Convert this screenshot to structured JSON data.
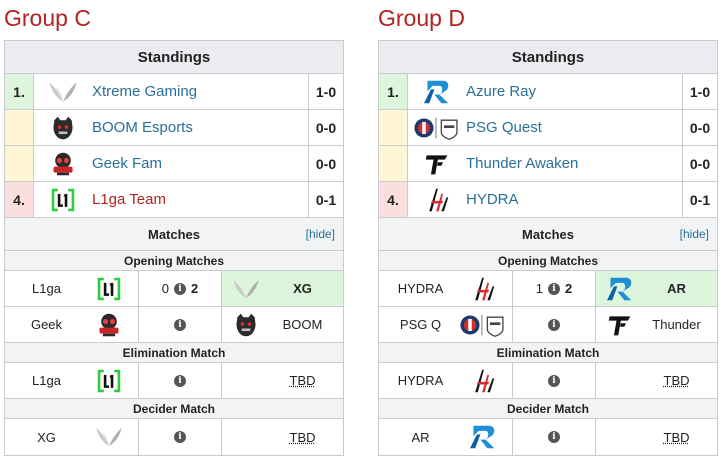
{
  "groups": [
    {
      "title": "Group C",
      "standings_label": "Standings",
      "standings": [
        {
          "place": "1.",
          "team": "Xtreme Gaming",
          "score": "1-0",
          "logo": "xg-wings-icon"
        },
        {
          "place": "",
          "team": "BOOM Esports",
          "score": "0-0",
          "logo": "boom-bear-icon"
        },
        {
          "place": "",
          "team": "Geek Fam",
          "score": "0-0",
          "logo": "geek-fam-icon"
        },
        {
          "place": "4.",
          "team": "L1ga Team",
          "score": "0-1",
          "logo": "l1ga-icon"
        }
      ],
      "matches_label": "Matches",
      "hide_label": "[hide]",
      "rounds": [
        {
          "title": "Opening Matches",
          "matches": [
            {
              "left": "L1ga",
              "left_score": "0",
              "right_score": "2",
              "right": "XG"
            },
            {
              "left": "Geek",
              "left_score": "",
              "right_score": "",
              "right": "BOOM"
            }
          ]
        },
        {
          "title": "Elimination Match",
          "matches": [
            {
              "left": "L1ga",
              "left_score": "",
              "right_score": "",
              "right": "TBD"
            }
          ]
        },
        {
          "title": "Decider Match",
          "matches": [
            {
              "left": "XG",
              "left_score": "",
              "right_score": "",
              "right": "TBD"
            }
          ]
        }
      ]
    },
    {
      "title": "Group D",
      "standings_label": "Standings",
      "standings": [
        {
          "place": "1.",
          "team": "Azure Ray",
          "score": "1-0",
          "logo": "azure-ray-icon"
        },
        {
          "place": "",
          "team": "PSG Quest",
          "score": "0-0",
          "logo": "psg-quest-icon"
        },
        {
          "place": "",
          "team": "Thunder Awaken",
          "score": "0-0",
          "logo": "thunder-awaken-icon"
        },
        {
          "place": "4.",
          "team": "HYDRA",
          "score": "0-1",
          "logo": "hydra-icon"
        }
      ],
      "matches_label": "Matches",
      "hide_label": "[hide]",
      "rounds": [
        {
          "title": "Opening Matches",
          "matches": [
            {
              "left": "HYDRA",
              "left_score": "1",
              "right_score": "2",
              "right": "AR"
            },
            {
              "left": "PSG Q",
              "left_score": "",
              "right_score": "",
              "right": "Thunder"
            }
          ]
        },
        {
          "title": "Elimination Match",
          "matches": [
            {
              "left": "HYDRA",
              "left_score": "",
              "right_score": "",
              "right": "TBD"
            }
          ]
        },
        {
          "title": "Decider Match",
          "matches": [
            {
              "left": "AR",
              "left_score": "",
              "right_score": "",
              "right": "TBD"
            }
          ]
        }
      ]
    }
  ]
}
